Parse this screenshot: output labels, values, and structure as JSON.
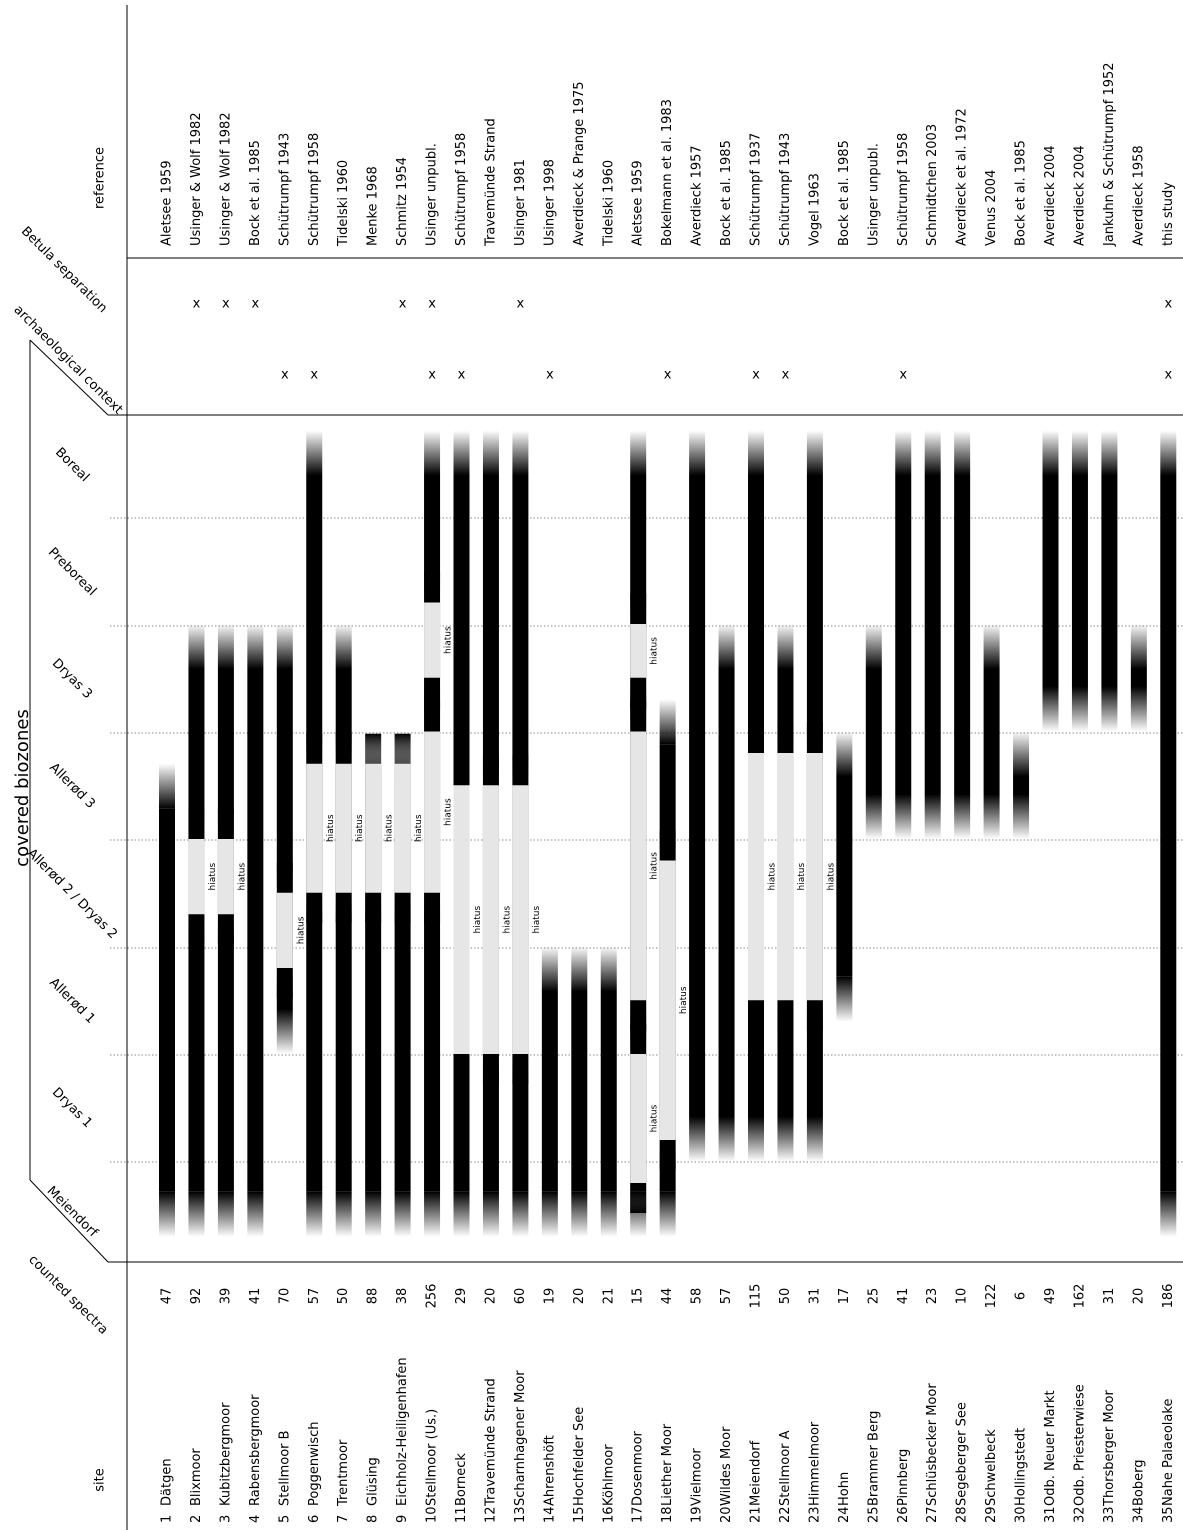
{
  "chart_data": {
    "type": "range-bar",
    "orientation": "rotated",
    "axis_title": "covered biozones",
    "column_headers": {
      "site": "site",
      "counted_spectra": "counted spectra",
      "archaeological_context": "archaeological context",
      "betula_separation": "Betula separation",
      "reference": "reference"
    },
    "biozones": [
      "Meiendorf",
      "Dryas 1",
      "Allerød 1",
      "Allerød 2 / Dryas 2",
      "Allerød 3",
      "Dryas 3",
      "Preboreal",
      "Boreal"
    ],
    "hiatus_label": "hiatus",
    "mark_label": "x",
    "sites": [
      {
        "id": "1",
        "name": "Dätgen",
        "spectra": "47",
        "archaeo": false,
        "betula": false,
        "reference": "Aletsee 1959",
        "coverage": [
          0.3,
          4.7
        ],
        "hiatus": []
      },
      {
        "id": "2",
        "name": "Blixmoor",
        "spectra": "92",
        "archaeo": false,
        "betula": true,
        "reference": "Usinger & Wolf 1982",
        "coverage": [
          0.3,
          6.0
        ],
        "hiatus": [
          [
            3.3,
            4.0
          ]
        ]
      },
      {
        "id": "3",
        "name": "Kubitzbergmoor",
        "spectra": "39",
        "archaeo": false,
        "betula": true,
        "reference": "Usinger & Wolf 1982",
        "coverage": [
          0.3,
          6.0
        ],
        "hiatus": [
          [
            3.3,
            4.0
          ]
        ]
      },
      {
        "id": "4",
        "name": "Rabensbergmoor",
        "spectra": "41",
        "archaeo": false,
        "betula": true,
        "reference": "Bock et al. 1985",
        "coverage": [
          0.3,
          6.0
        ],
        "hiatus": []
      },
      {
        "id": "5",
        "name": "Stellmoor B",
        "spectra": "70",
        "archaeo": true,
        "betula": false,
        "reference": "Schütrumpf 1943",
        "coverage": [
          2.0,
          6.0
        ],
        "hiatus": [
          [
            2.8,
            3.5
          ]
        ]
      },
      {
        "id": "6",
        "name": "Poggenwisch",
        "spectra": "57",
        "archaeo": true,
        "betula": false,
        "reference": "Schütrumpf 1958",
        "coverage": [
          0.3,
          7.8
        ],
        "hiatus": [
          [
            3.5,
            4.7
          ]
        ]
      },
      {
        "id": "7",
        "name": "Trentmoor",
        "spectra": "50",
        "archaeo": false,
        "betula": false,
        "reference": "Tidelski 1960",
        "coverage": [
          0.3,
          6.0
        ],
        "hiatus": [
          [
            3.5,
            4.7
          ]
        ]
      },
      {
        "id": "8",
        "name": "Glüsing",
        "spectra": "88",
        "archaeo": false,
        "betula": false,
        "reference": "Menke 1968",
        "coverage": [
          0.3,
          5.0
        ],
        "hiatus": [
          [
            3.5,
            4.7
          ]
        ]
      },
      {
        "id": "9",
        "name": "Eichholz-Heiligenhafen",
        "spectra": "38",
        "archaeo": false,
        "betula": true,
        "reference": "Schmitz 1954",
        "coverage": [
          0.3,
          5.0
        ],
        "hiatus": [
          [
            3.5,
            4.7
          ]
        ]
      },
      {
        "id": "10",
        "name": "Stellmoor (Us.)",
        "spectra": "256",
        "archaeo": true,
        "betula": true,
        "reference": "Usinger unpubl.",
        "coverage": [
          0.3,
          7.8
        ],
        "hiatus": [
          [
            3.5,
            5.0
          ],
          [
            5.5,
            6.2
          ]
        ]
      },
      {
        "id": "11",
        "name": "Borneck",
        "spectra": "29",
        "archaeo": true,
        "betula": false,
        "reference": "Schütrumpf 1958",
        "coverage": [
          0.3,
          7.8
        ],
        "hiatus": [
          [
            2.0,
            4.5
          ]
        ]
      },
      {
        "id": "12",
        "name": "Travemünde Strand",
        "spectra": "20",
        "archaeo": false,
        "betula": false,
        "reference": "Travemünde Strand",
        "coverage": [
          0.3,
          7.8
        ],
        "hiatus": [
          [
            2.0,
            4.5
          ]
        ]
      },
      {
        "id": "13",
        "name": "Scharnhagener Moor",
        "spectra": "60",
        "archaeo": false,
        "betula": true,
        "reference": "Usinger 1981",
        "coverage": [
          0.3,
          7.8
        ],
        "hiatus": [
          [
            2.0,
            4.5
          ]
        ]
      },
      {
        "id": "14",
        "name": "Ahrenshöft",
        "spectra": "19",
        "archaeo": true,
        "betula": false,
        "reference": "Usinger 1998",
        "coverage": [
          0.3,
          3.0
        ],
        "hiatus": []
      },
      {
        "id": "15",
        "name": "Hochfelder See",
        "spectra": "20",
        "archaeo": false,
        "betula": false,
        "reference": "Averdieck & Prange 1975",
        "coverage": [
          0.3,
          3.0
        ],
        "hiatus": []
      },
      {
        "id": "16",
        "name": "Köhlmoor",
        "spectra": "21",
        "archaeo": false,
        "betula": false,
        "reference": "Tidelski 1960",
        "coverage": [
          0.3,
          3.0
        ],
        "hiatus": []
      },
      {
        "id": "17",
        "name": "Dosenmoor",
        "spectra": "15",
        "archaeo": false,
        "betula": false,
        "reference": "Aletsee 1959",
        "coverage": [
          0.3,
          7.8
        ],
        "hiatus": [
          [
            0.8,
            2.0
          ],
          [
            2.5,
            5.0
          ],
          [
            5.5,
            6.0
          ]
        ]
      },
      {
        "id": "18",
        "name": "Liether Moor",
        "spectra": "44",
        "archaeo": true,
        "betula": false,
        "reference": "Bokelmann et al. 1983",
        "coverage": [
          0.3,
          5.3
        ],
        "hiatus": [
          [
            1.2,
            3.8
          ]
        ]
      },
      {
        "id": "19",
        "name": "Vielmoor",
        "spectra": "58",
        "archaeo": false,
        "betula": false,
        "reference": "Averdieck 1957",
        "coverage": [
          1.0,
          7.8
        ],
        "hiatus": []
      },
      {
        "id": "20",
        "name": "Wildes Moor",
        "spectra": "57",
        "archaeo": false,
        "betula": false,
        "reference": "Bock et al. 1985",
        "coverage": [
          1.0,
          6.0
        ],
        "hiatus": []
      },
      {
        "id": "21",
        "name": "Meiendorf",
        "spectra": "115",
        "archaeo": true,
        "betula": false,
        "reference": "Schütrumpf 1937",
        "coverage": [
          1.0,
          7.8
        ],
        "hiatus": [
          [
            2.5,
            4.8
          ]
        ]
      },
      {
        "id": "22",
        "name": "Stellmoor A",
        "spectra": "50",
        "archaeo": true,
        "betula": false,
        "reference": "Schütrumpf 1943",
        "coverage": [
          1.0,
          6.0
        ],
        "hiatus": [
          [
            2.5,
            4.8
          ]
        ]
      },
      {
        "id": "23",
        "name": "Himmelmoor",
        "spectra": "31",
        "archaeo": false,
        "betula": false,
        "reference": "Vogel 1963",
        "coverage": [
          1.0,
          7.8
        ],
        "hiatus": [
          [
            2.5,
            4.8
          ]
        ]
      },
      {
        "id": "24",
        "name": "Hohn",
        "spectra": "17",
        "archaeo": false,
        "betula": false,
        "reference": "Bock et al. 1985",
        "coverage": [
          2.3,
          5.0
        ],
        "hiatus": []
      },
      {
        "id": "25",
        "name": "Brammer Berg",
        "spectra": "25",
        "archaeo": false,
        "betula": false,
        "reference": "Usinger unpubl.",
        "coverage": [
          4.0,
          6.0
        ],
        "hiatus": []
      },
      {
        "id": "26",
        "name": "Pinnberg",
        "spectra": "41",
        "archaeo": true,
        "betula": false,
        "reference": "Schütrumpf 1958",
        "coverage": [
          4.0,
          7.8
        ],
        "hiatus": []
      },
      {
        "id": "27",
        "name": "Schlüsbecker Moor",
        "spectra": "23",
        "archaeo": false,
        "betula": false,
        "reference": "Schmidtchen 2003",
        "coverage": [
          4.0,
          7.8
        ],
        "hiatus": []
      },
      {
        "id": "28",
        "name": "Segeberger See",
        "spectra": "10",
        "archaeo": false,
        "betula": false,
        "reference": "Averdieck et al. 1972",
        "coverage": [
          4.0,
          7.8
        ],
        "hiatus": []
      },
      {
        "id": "29",
        "name": "Schwelbeck",
        "spectra": "122",
        "archaeo": false,
        "betula": false,
        "reference": "Venus 2004",
        "coverage": [
          4.0,
          6.0
        ],
        "hiatus": []
      },
      {
        "id": "30",
        "name": "Hollingstedt",
        "spectra": "6",
        "archaeo": false,
        "betula": false,
        "reference": "Bock et al. 1985",
        "coverage": [
          4.0,
          5.0
        ],
        "hiatus": []
      },
      {
        "id": "31",
        "name": "Odb. Neuer Markt",
        "spectra": "49",
        "archaeo": false,
        "betula": false,
        "reference": "Averdieck 2004",
        "coverage": [
          5.0,
          7.8
        ],
        "hiatus": []
      },
      {
        "id": "32",
        "name": "Odb. Priesterwiese",
        "spectra": "162",
        "archaeo": false,
        "betula": false,
        "reference": "Averdieck 2004",
        "coverage": [
          5.0,
          7.8
        ],
        "hiatus": []
      },
      {
        "id": "33",
        "name": "Thorsberger Moor",
        "spectra": "31",
        "archaeo": false,
        "betula": false,
        "reference": "Jankuhn & Schütrumpf 1952",
        "coverage": [
          5.0,
          7.8
        ],
        "hiatus": []
      },
      {
        "id": "34",
        "name": "Boberg",
        "spectra": "20",
        "archaeo": false,
        "betula": false,
        "reference": "Averdieck 1958",
        "coverage": [
          5.0,
          6.0
        ],
        "hiatus": []
      },
      {
        "id": "35",
        "name": "Nahe Palaeolake",
        "spectra": "186",
        "archaeo": true,
        "betula": true,
        "reference": "this study",
        "coverage": [
          0.3,
          7.8
        ],
        "hiatus": []
      }
    ]
  }
}
